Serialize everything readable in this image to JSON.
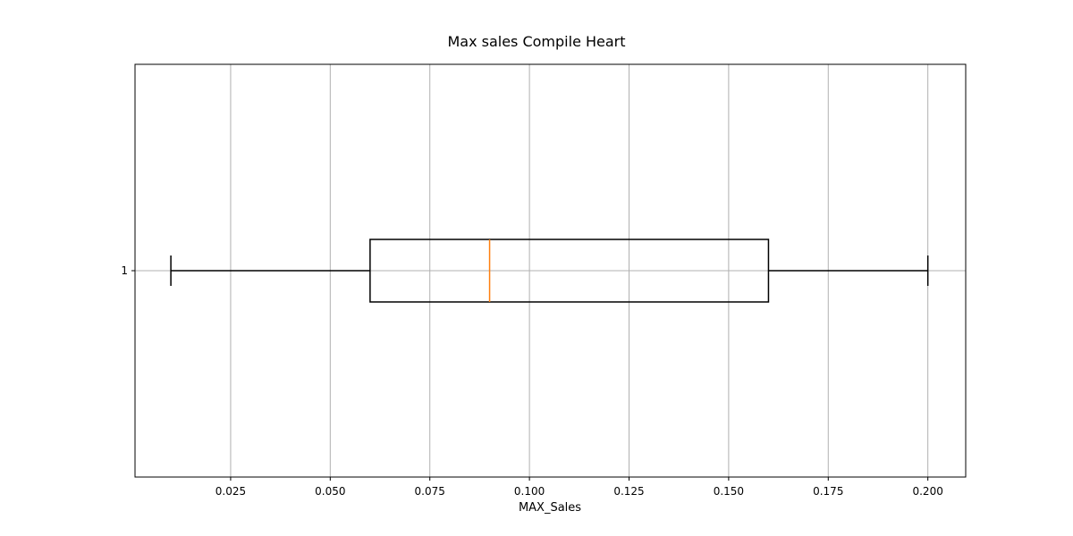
{
  "chart_data": {
    "type": "boxplot",
    "orientation": "horizontal",
    "title": "Max sales Compile Heart",
    "xlabel": "MAX_Sales",
    "ylabel": "",
    "xlim": [
      0.001,
      0.2095
    ],
    "x_ticks": [
      0.025,
      0.05,
      0.075,
      0.1,
      0.125,
      0.15,
      0.175,
      0.2
    ],
    "x_tick_labels": [
      "0.025",
      "0.050",
      "0.075",
      "0.100",
      "0.125",
      "0.150",
      "0.175",
      "0.200"
    ],
    "y_tick_labels": [
      "1"
    ],
    "grid": true,
    "boxes": [
      {
        "label": "1",
        "whisker_low": 0.01,
        "q1": 0.06,
        "median": 0.09,
        "q3": 0.16,
        "whisker_high": 0.2
      }
    ],
    "colors": {
      "box": "#000000",
      "median": "#ff7f0e",
      "grid": "#b0b0b0"
    }
  }
}
